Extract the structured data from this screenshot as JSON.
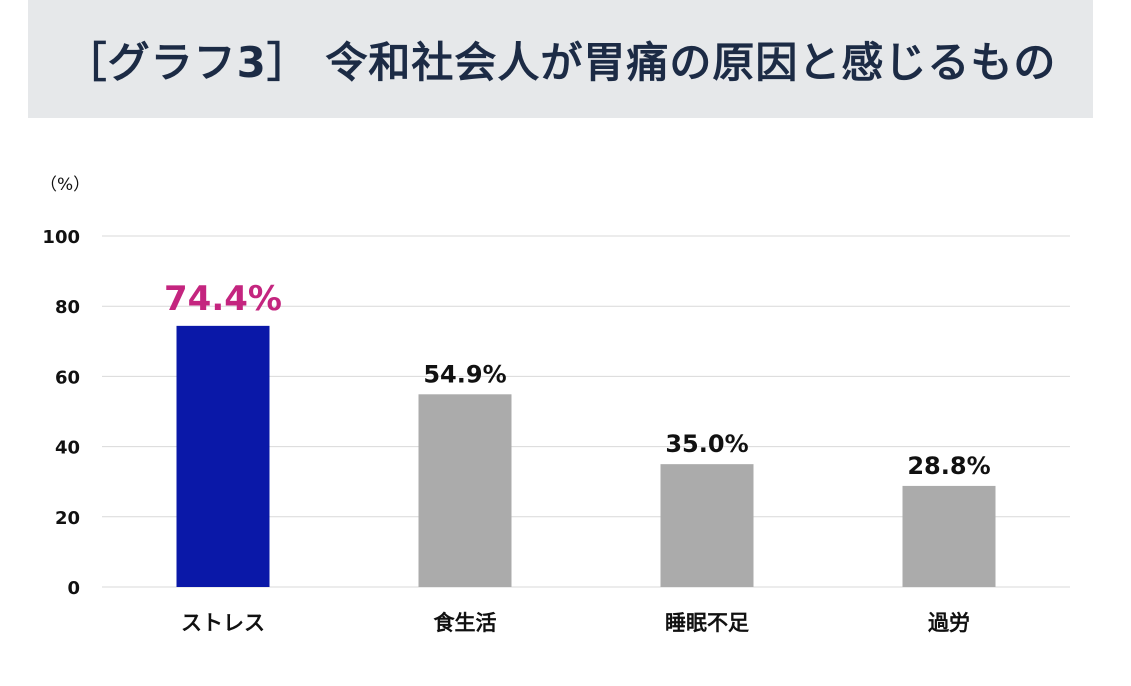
{
  "title": "［グラフ3］ 令和社会人が胃痛の原因と感じるもの",
  "chart_data": {
    "type": "bar",
    "unit_label": "（%）",
    "categories": [
      "ストレス",
      "食生活",
      "睡眠不足",
      "過労"
    ],
    "values": [
      74.4,
      54.9,
      35.0,
      28.8
    ],
    "value_labels": [
      "74.4%",
      "54.9%",
      "35.0%",
      "28.8%"
    ],
    "ylim": [
      0,
      100
    ],
    "yticks": [
      0,
      20,
      40,
      60,
      80,
      100
    ],
    "grid": true,
    "highlight_index": 0,
    "colors": {
      "highlight_bar": "#0a18a8",
      "other_bars": "#ababab",
      "highlight_label": "#c4257f",
      "gridline": "#d9d9d9"
    }
  }
}
